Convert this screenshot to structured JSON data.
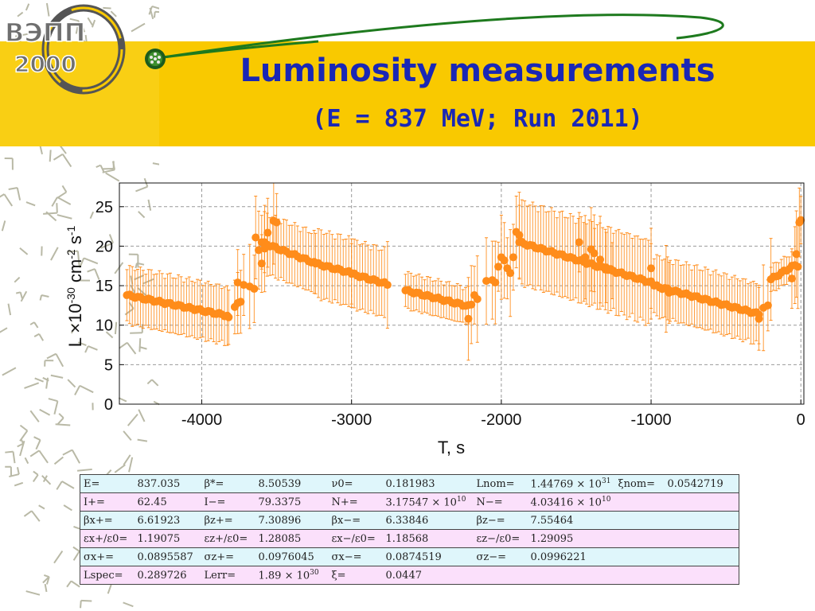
{
  "header": {
    "title": "Luminosity measurements",
    "subtitle": "(E = 837 MeV; Run 2011)"
  },
  "logo": {
    "line1": "ВЭПП",
    "line2": "2000"
  },
  "colors": {
    "band": "#f9c900",
    "title": "#1a27b5",
    "points": "#ff8c1a",
    "swoosh": "#1e7a1e"
  },
  "chart_data": {
    "type": "scatter",
    "xlabel": "T, s",
    "ylabel_parts": {
      "base": "L ×10",
      "exp1": "-30",
      "mid": " cm",
      "exp2": "-2",
      "unit": " s",
      "exp3": "-1"
    },
    "xlim": [
      -4550,
      20
    ],
    "ylim": [
      0,
      28
    ],
    "x_ticks": [
      -4000,
      -3000,
      -2000,
      -1000,
      0
    ],
    "y_ticks": [
      0,
      5,
      10,
      15,
      20,
      25
    ],
    "grid": true,
    "segments": [
      {
        "x0": -4500,
        "x1": -3830,
        "y0": 13.8,
        "y1": 11.2,
        "err": 3.8
      },
      {
        "x0": -3780,
        "x1": -3740,
        "y0": 12.3,
        "y1": 13.0,
        "err": 4.0
      },
      {
        "x0": -3600,
        "x1": -3250,
        "y0": 20.5,
        "y1": 17.9,
        "err": 4.0
      },
      {
        "x0": -3240,
        "x1": -3000,
        "y0": 17.8,
        "y1": 16.6,
        "err": 4.5
      },
      {
        "x0": -3000,
        "x1": -2780,
        "y0": 16.5,
        "y1": 15.3,
        "err": 4.5
      },
      {
        "x0": -2640,
        "x1": -2220,
        "y0": 14.4,
        "y1": 12.4,
        "err": 2.4
      },
      {
        "x0": -1880,
        "x1": -1000,
        "y0": 20.5,
        "y1": 15.4,
        "err": 5.5
      },
      {
        "x0": -980,
        "x1": -280,
        "y0": 15.0,
        "y1": 11.4,
        "err": 4.0
      },
      {
        "x0": -200,
        "x1": -60,
        "y0": 15.8,
        "y1": 17.4,
        "err": 1.8
      }
    ],
    "points": [
      [
        -3820,
        11.0
      ],
      [
        -3760,
        15.4
      ],
      [
        -3720,
        15.1
      ],
      [
        -3680,
        14.9
      ],
      [
        -3650,
        14.6
      ],
      [
        -3640,
        21.1
      ],
      [
        -3620,
        19.5
      ],
      [
        -3600,
        17.8
      ],
      [
        -3580,
        19.7
      ],
      [
        -3560,
        21.7
      ],
      [
        -3520,
        23.2
      ],
      [
        -3500,
        23.0
      ],
      [
        -2760,
        15.1
      ],
      [
        -2220,
        10.8
      ],
      [
        -2200,
        12.6
      ],
      [
        -2180,
        13.8
      ],
      [
        -2160,
        13.3
      ],
      [
        -2100,
        15.6
      ],
      [
        -2060,
        15.7
      ],
      [
        -2040,
        15.4
      ],
      [
        -2020,
        17.4
      ],
      [
        -2000,
        18.6
      ],
      [
        -1980,
        18.2
      ],
      [
        -1960,
        17.2
      ],
      [
        -1940,
        16.6
      ],
      [
        -1920,
        18.6
      ],
      [
        -1900,
        21.8
      ],
      [
        -1880,
        21.4
      ],
      [
        -1480,
        20.5
      ],
      [
        -1440,
        18.6
      ],
      [
        -1400,
        19.6
      ],
      [
        -1380,
        19.1
      ],
      [
        -1340,
        18.3
      ],
      [
        -1300,
        17.3
      ],
      [
        -1260,
        16.9
      ],
      [
        -1000,
        17.2
      ],
      [
        -900,
        14.6
      ],
      [
        -880,
        14.1
      ],
      [
        -280,
        10.8
      ],
      [
        -250,
        12.2
      ],
      [
        -220,
        12.5
      ],
      [
        -200,
        15.8
      ],
      [
        -60,
        15.9
      ],
      [
        -40,
        17.6
      ],
      [
        -30,
        19.0
      ],
      [
        -20,
        17.4
      ],
      [
        -10,
        23.0
      ],
      [
        0,
        23.3
      ]
    ]
  },
  "table": {
    "rows": [
      {
        "style": "c",
        "cells": [
          "E=",
          "837.035",
          "β*=",
          "8.50539",
          "ν0=",
          "0.181983",
          "Lnom=",
          "1.44769 × 10^31",
          "ξnom=",
          "0.0542719"
        ]
      },
      {
        "style": "m",
        "cells": [
          "I+=",
          "62.45",
          "I−=",
          "79.3375",
          "N+=",
          "3.17547 × 10^10",
          "N−=",
          "4.03416 × 10^10",
          "",
          ""
        ]
      },
      {
        "style": "c",
        "cells": [
          "βx+=",
          "6.61923",
          "βz+=",
          "7.30896",
          "βx−=",
          "6.33846",
          "βz−=",
          "7.55464",
          "",
          ""
        ]
      },
      {
        "style": "m",
        "cells": [
          "εx+/ε0=",
          "1.19075",
          "εz+/ε0=",
          "1.28085",
          "εx−/ε0=",
          "1.18568",
          "εz−/ε0=",
          "1.29095",
          "",
          ""
        ]
      },
      {
        "style": "c",
        "cells": [
          "σx+=",
          "0.0895587",
          "σz+=",
          "0.0976045",
          "σx−=",
          "0.0874519",
          "σz−=",
          "0.0996221",
          "",
          ""
        ]
      },
      {
        "style": "m",
        "cells": [
          "Lspec=",
          "0.289726",
          "Lerr=",
          "1.89 × 10^30",
          "ξ=",
          "0.0447",
          "",
          "",
          "",
          ""
        ]
      }
    ]
  }
}
